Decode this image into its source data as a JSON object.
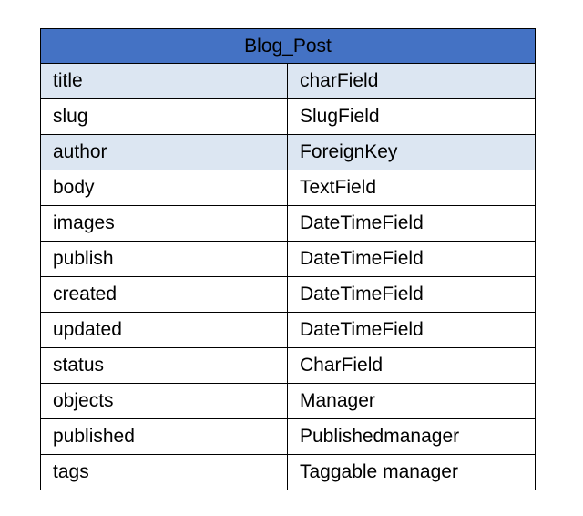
{
  "table": {
    "title": "Blog_Post",
    "rows": [
      {
        "field": "title",
        "type": "charField",
        "shaded": true
      },
      {
        "field": "slug",
        "type": "SlugField",
        "shaded": false
      },
      {
        "field": "author",
        "type": "ForeignKey",
        "shaded": true
      },
      {
        "field": "body",
        "type": "TextField",
        "shaded": false
      },
      {
        "field": "images",
        "type": "DateTimeField",
        "shaded": false
      },
      {
        "field": "publish",
        "type": "DateTimeField",
        "shaded": false
      },
      {
        "field": "created",
        "type": "DateTimeField",
        "shaded": false
      },
      {
        "field": "updated",
        "type": "DateTimeField",
        "shaded": false
      },
      {
        "field": "status",
        "type": "CharField",
        "shaded": false
      },
      {
        "field": "objects",
        "type": "Manager",
        "shaded": false
      },
      {
        "field": "published",
        "type": "Publishedmanager",
        "shaded": false
      },
      {
        "field": "tags",
        "type": "Taggable manager",
        "shaded": false
      }
    ]
  },
  "colors": {
    "header": "#4472c4",
    "shaded_row": "#dce6f2",
    "border": "#000000"
  }
}
